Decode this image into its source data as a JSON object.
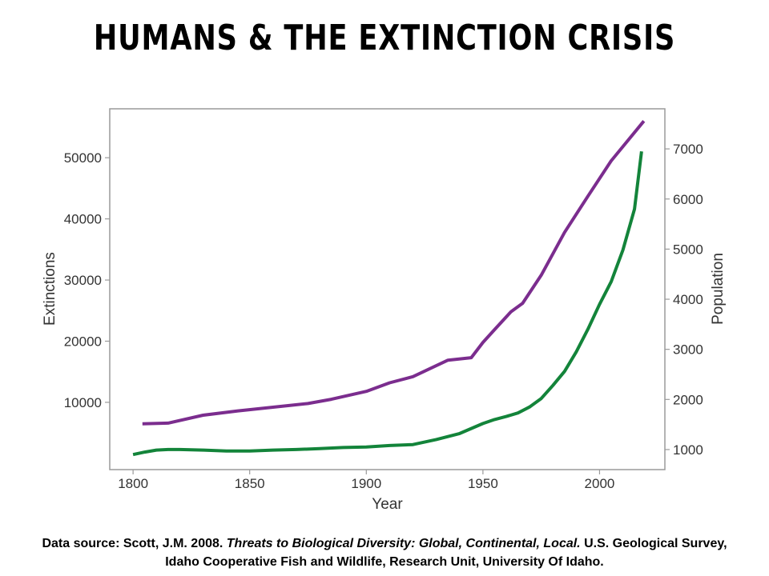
{
  "page": {
    "title": "HUMANS & THE EXTINCTION CRISIS"
  },
  "source": {
    "prefix": "Data source: Scott, J.M. 2008.",
    "book_title": "Threats to Biological Diversity: Global, Continental, Local.",
    "publisher": "U.S. Geological Survey,",
    "line2": "Idaho Cooperative Fish and Wildlife, Research Unit, University Of Idaho."
  },
  "colors": {
    "extinctions": "#7b2d8e",
    "population": "#13843a",
    "frame": "#9a9a9a",
    "text": "#333333"
  },
  "chart_data": {
    "type": "line",
    "xlabel": "Year",
    "ylabel_left": "Extinctions",
    "ylabel_right": "Population",
    "xlim": [
      1790,
      2028
    ],
    "ylim_left": [
      -1000,
      58000
    ],
    "ylim_right": [
      600,
      7800
    ],
    "x_ticks": [
      1800,
      1850,
      1900,
      1950,
      2000
    ],
    "y_left_ticks": [
      10000,
      20000,
      30000,
      40000,
      50000
    ],
    "y_right_ticks": [
      1000,
      2000,
      3000,
      4000,
      5000,
      6000,
      7000
    ],
    "grid": false,
    "series": [
      {
        "name": "Extinctions",
        "axis": "left",
        "color": "#7b2d8e",
        "x": [
          1804,
          1815,
          1830,
          1845,
          1860,
          1875,
          1885,
          1900,
          1910,
          1920,
          1930,
          1935,
          1945,
          1950,
          1955,
          1962,
          1967,
          1975,
          1985,
          1995,
          2005,
          2019
        ],
        "y": [
          6500,
          6600,
          7900,
          8600,
          9200,
          9800,
          10500,
          11800,
          13200,
          14200,
          16000,
          16900,
          17300,
          19800,
          21900,
          24800,
          26200,
          30800,
          37800,
          43700,
          49500,
          56000
        ]
      },
      {
        "name": "Population",
        "axis": "right",
        "color": "#13843a",
        "x": [
          1800,
          1805,
          1810,
          1815,
          1820,
          1830,
          1840,
          1850,
          1860,
          1870,
          1880,
          1890,
          1900,
          1910,
          1920,
          1930,
          1940,
          1950,
          1955,
          1960,
          1965,
          1970,
          1975,
          1980,
          1985,
          1990,
          1995,
          2000,
          2005,
          2010,
          2015,
          2018
        ],
        "y": [
          900,
          950,
          990,
          1000,
          1000,
          990,
          970,
          970,
          990,
          1000,
          1020,
          1040,
          1050,
          1080,
          1100,
          1200,
          1320,
          1520,
          1600,
          1660,
          1730,
          1850,
          2020,
          2280,
          2560,
          2950,
          3400,
          3900,
          4350,
          4980,
          5800,
          6950
        ]
      }
    ]
  }
}
